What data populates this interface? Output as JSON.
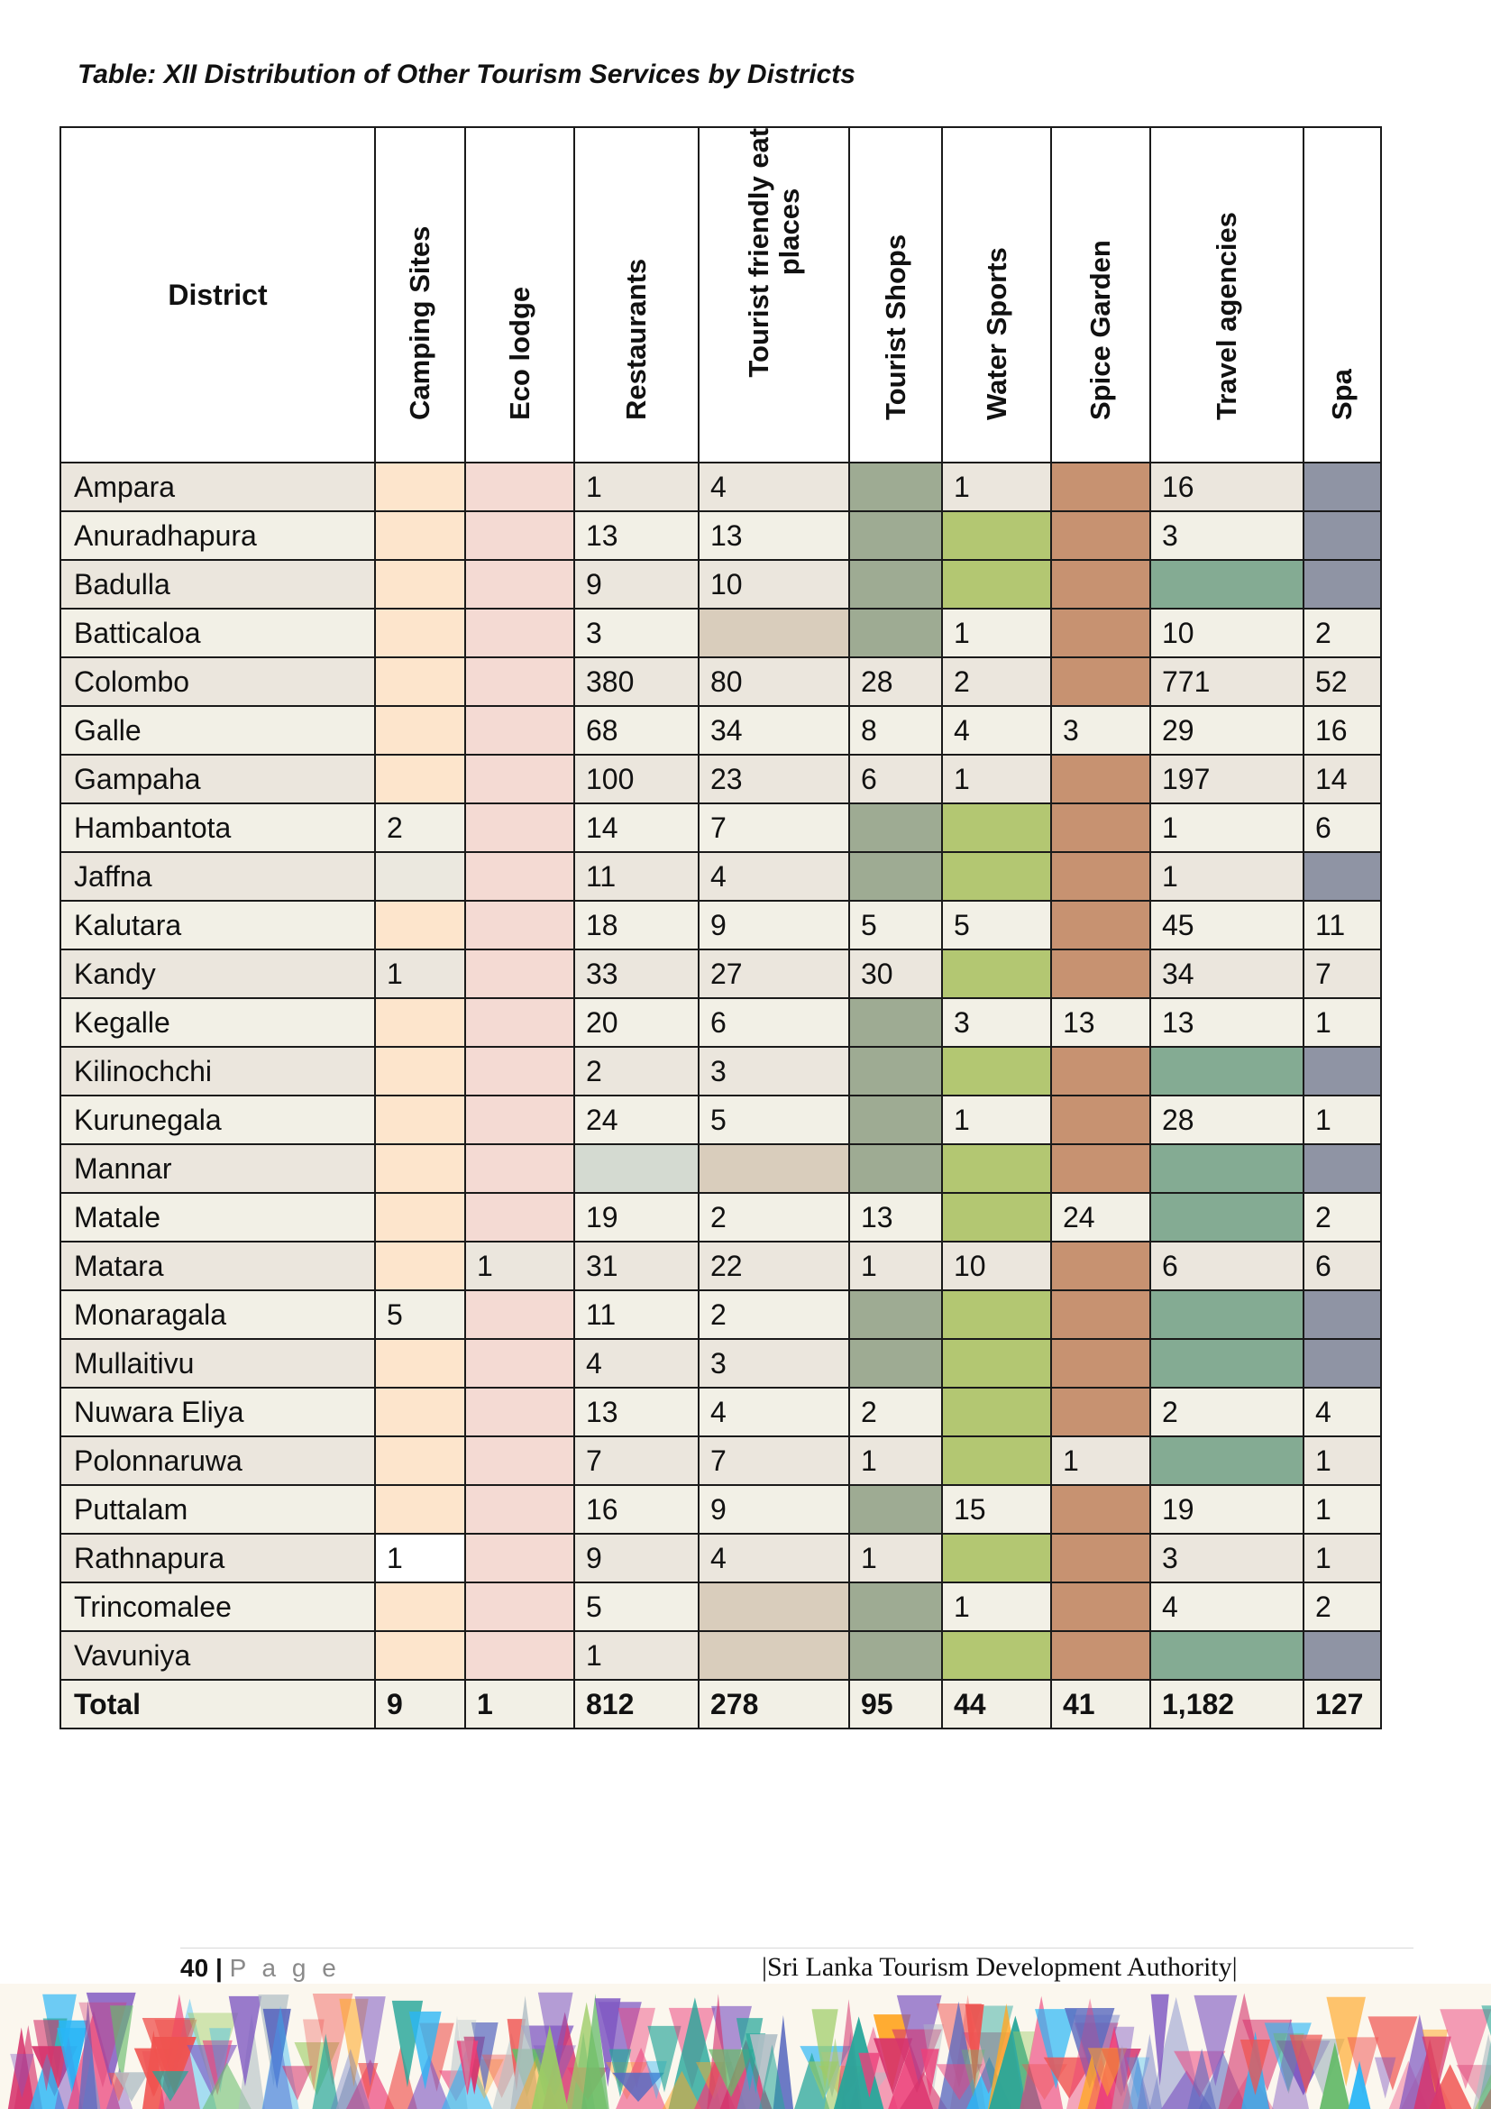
{
  "caption": "Table: XII Distribution of Other Tourism Services by Districts",
  "table": {
    "headers": {
      "district": "District",
      "camping": "Camping Sites",
      "eco": "Eco lodge",
      "restaurants": "Restaurants",
      "tfe": "Tourist friendly eating places",
      "shops": "Tourist Shops",
      "water": "Water Sports",
      "spice": "Spice Garden",
      "travel": "Travel agencies",
      "spa": "Spa"
    },
    "rows": [
      {
        "district": "Ampara",
        "camping": "",
        "eco": "",
        "restaurants": "1",
        "tfe": "4",
        "shops": "",
        "water": "1",
        "spice": "",
        "travel": "16",
        "spa": ""
      },
      {
        "district": "Anuradhapura",
        "camping": "",
        "eco": "",
        "restaurants": "13",
        "tfe": "13",
        "shops": "",
        "water": "",
        "spice": "",
        "travel": "3",
        "spa": ""
      },
      {
        "district": "Badulla",
        "camping": "",
        "eco": "",
        "restaurants": "9",
        "tfe": "10",
        "shops": "",
        "water": "",
        "spice": "",
        "travel": "",
        "spa": ""
      },
      {
        "district": "Batticaloa",
        "camping": "",
        "eco": "",
        "restaurants": "3",
        "tfe": "",
        "shops": "",
        "water": "1",
        "spice": "",
        "travel": "10",
        "spa": "2"
      },
      {
        "district": "Colombo",
        "camping": "",
        "eco": "",
        "restaurants": "380",
        "tfe": "80",
        "shops": "28",
        "water": "2",
        "spice": "",
        "travel": "771",
        "spa": "52"
      },
      {
        "district": "Galle",
        "camping": "",
        "eco": "",
        "restaurants": "68",
        "tfe": "34",
        "shops": "8",
        "water": "4",
        "spice": "3",
        "travel": "29",
        "spa": "16"
      },
      {
        "district": "Gampaha",
        "camping": "",
        "eco": "",
        "restaurants": "100",
        "tfe": "23",
        "shops": "6",
        "water": "1",
        "spice": "",
        "travel": "197",
        "spa": "14"
      },
      {
        "district": "Hambantota",
        "camping": "2",
        "eco": "",
        "restaurants": "14",
        "tfe": "7",
        "shops": "",
        "water": "",
        "spice": "",
        "travel": "1",
        "spa": "6"
      },
      {
        "district": "Jaffna",
        "camping": "",
        "eco": "",
        "restaurants": "11",
        "tfe": "4",
        "shops": "",
        "water": "",
        "spice": "",
        "travel": "1",
        "spa": ""
      },
      {
        "district": "Kalutara",
        "camping": "",
        "eco": "",
        "restaurants": "18",
        "tfe": "9",
        "shops": "5",
        "water": "5",
        "spice": "",
        "travel": "45",
        "spa": "11"
      },
      {
        "district": "Kandy",
        "camping": "1",
        "eco": "",
        "restaurants": "33",
        "tfe": "27",
        "shops": "30",
        "water": "",
        "spice": "",
        "travel": "34",
        "spa": "7"
      },
      {
        "district": "Kegalle",
        "camping": "",
        "eco": "",
        "restaurants": "20",
        "tfe": "6",
        "shops": "",
        "water": "3",
        "spice": "13",
        "travel": "13",
        "spa": "1"
      },
      {
        "district": "Kilinochchi",
        "camping": "",
        "eco": "",
        "restaurants": "2",
        "tfe": "3",
        "shops": "",
        "water": "",
        "spice": "",
        "travel": "",
        "spa": ""
      },
      {
        "district": "Kurunegala",
        "camping": "",
        "eco": "",
        "restaurants": "24",
        "tfe": "5",
        "shops": "",
        "water": "1",
        "spice": "",
        "travel": "28",
        "spa": "1"
      },
      {
        "district": "Mannar",
        "camping": "",
        "eco": "",
        "restaurants": "",
        "tfe": "",
        "shops": "",
        "water": "",
        "spice": "",
        "travel": "",
        "spa": ""
      },
      {
        "district": "Matale",
        "camping": "",
        "eco": "",
        "restaurants": "19",
        "tfe": "2",
        "shops": "13",
        "water": "",
        "spice": "24",
        "travel": "",
        "spa": "2"
      },
      {
        "district": "Matara",
        "camping": "",
        "eco": "1",
        "restaurants": "31",
        "tfe": "22",
        "shops": "1",
        "water": "10",
        "spice": "",
        "travel": "6",
        "spa": "6"
      },
      {
        "district": "Monaragala",
        "camping": "5",
        "eco": "",
        "restaurants": "11",
        "tfe": "2",
        "shops": "",
        "water": "",
        "spice": "",
        "travel": "",
        "spa": ""
      },
      {
        "district": "Mullaitivu",
        "camping": "",
        "eco": "",
        "restaurants": "4",
        "tfe": "3",
        "shops": "",
        "water": "",
        "spice": "",
        "travel": "",
        "spa": ""
      },
      {
        "district": "Nuwara Eliya",
        "camping": "",
        "eco": "",
        "restaurants": "13",
        "tfe": "4",
        "shops": "2",
        "water": "",
        "spice": "",
        "travel": "2",
        "spa": "4"
      },
      {
        "district": "Polonnaruwa",
        "camping": "",
        "eco": "",
        "restaurants": "7",
        "tfe": "7",
        "shops": "1",
        "water": "",
        "spice": "1",
        "travel": "",
        "spa": "1"
      },
      {
        "district": "Puttalam",
        "camping": "",
        "eco": "",
        "restaurants": "16",
        "tfe": "9",
        "shops": "",
        "water": "15",
        "spice": "",
        "travel": "19",
        "spa": "1"
      },
      {
        "district": "Rathnapura",
        "camping": "1",
        "eco": "",
        "restaurants": "9",
        "tfe": "4",
        "shops": "1",
        "water": "",
        "spice": "",
        "travel": "3",
        "spa": "1"
      },
      {
        "district": "Trincomalee",
        "camping": "",
        "eco": "",
        "restaurants": "5",
        "tfe": "",
        "shops": "",
        "water": "1",
        "spice": "",
        "travel": "4",
        "spa": "2"
      },
      {
        "district": "Vavuniya",
        "camping": "",
        "eco": "",
        "restaurants": "1",
        "tfe": "",
        "shops": "",
        "water": "",
        "spice": "",
        "travel": "",
        "spa": ""
      }
    ],
    "total": {
      "district": "Total",
      "camping": "9",
      "eco": "1",
      "restaurants": "812",
      "tfe": "278",
      "shops": "95",
      "water": "44",
      "spice": "41",
      "travel": "1,182",
      "spa": "127"
    }
  },
  "footer": {
    "page_number": "40",
    "separator": "|",
    "page_word": "P a g e",
    "organization": "|Sri Lanka Tourism Development Authority|"
  },
  "colors": {
    "camping_empty": "#fde5cc",
    "eco_empty": "#f4dad3",
    "shops_empty": "#9eab93",
    "water_empty": "#b3c772",
    "spice_empty": "#c79271",
    "travel_empty": "#84ab93",
    "spa_empty": "#8f94a4"
  }
}
